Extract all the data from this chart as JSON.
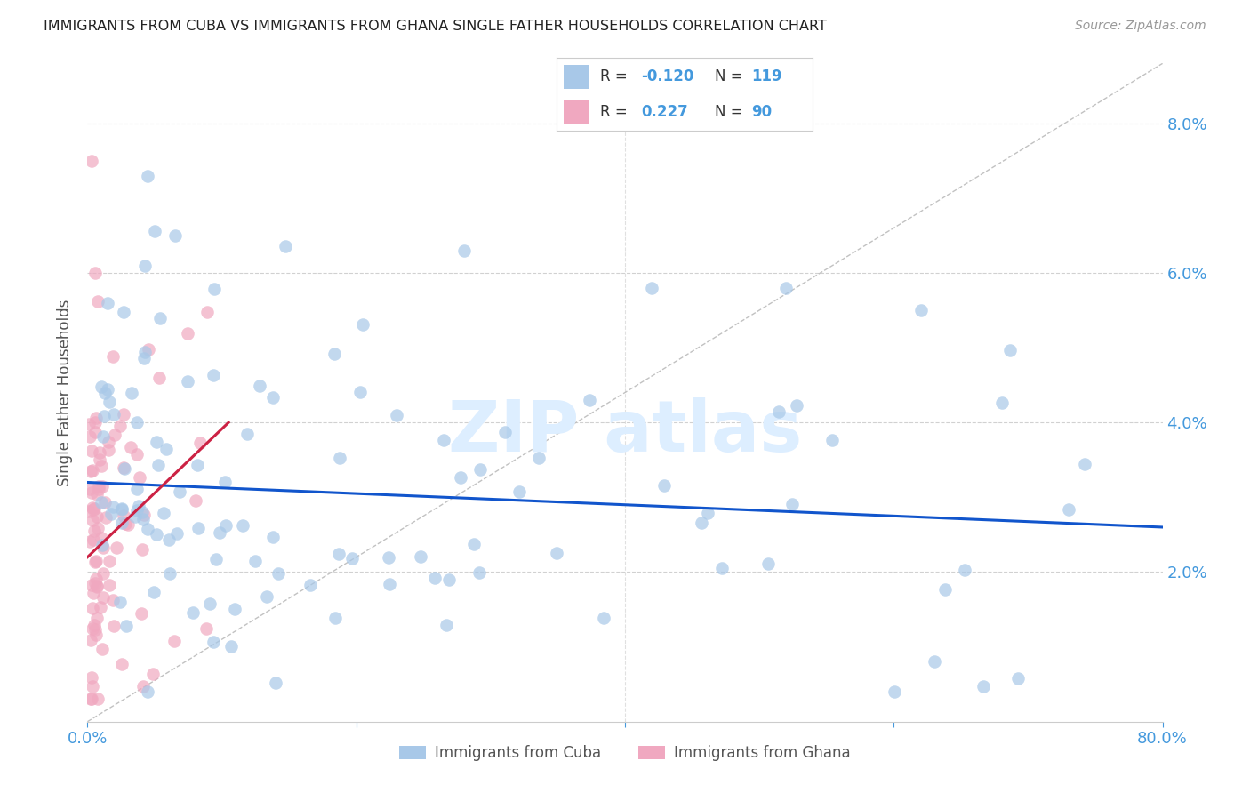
{
  "title": "IMMIGRANTS FROM CUBA VS IMMIGRANTS FROM GHANA SINGLE FATHER HOUSEHOLDS CORRELATION CHART",
  "source": "Source: ZipAtlas.com",
  "ylabel": "Single Father Households",
  "xlim": [
    0.0,
    0.8
  ],
  "ylim": [
    0.0,
    0.088
  ],
  "ytick_vals": [
    0.0,
    0.02,
    0.04,
    0.06,
    0.08
  ],
  "ytick_labels": [
    "",
    "2.0%",
    "4.0%",
    "6.0%",
    "8.0%"
  ],
  "xtick_vals": [
    0.0,
    0.2,
    0.4,
    0.6,
    0.8
  ],
  "xtick_labels": [
    "0.0%",
    "",
    "",
    "",
    "80.0%"
  ],
  "legend_cuba": "Immigrants from Cuba",
  "legend_ghana": "Immigrants from Ghana",
  "cuba_R": "-0.120",
  "cuba_N": "119",
  "ghana_R": "0.227",
  "ghana_N": "90",
  "cuba_color": "#a8c8e8",
  "ghana_color": "#f0a8c0",
  "cuba_line_color": "#1155cc",
  "ghana_line_color": "#cc2244",
  "ref_line_color": "#bbbbbb",
  "background_color": "#ffffff",
  "grid_color": "#cccccc",
  "title_color": "#222222",
  "axis_color": "#4499dd",
  "watermark_color": "#ddeeff",
  "legend_text_color": "#555555",
  "cuba_line_start_x": 0.0,
  "cuba_line_start_y": 0.032,
  "cuba_line_end_x": 0.8,
  "cuba_line_end_y": 0.026,
  "ghana_line_start_x": 0.0,
  "ghana_line_start_y": 0.022,
  "ghana_line_end_x": 0.105,
  "ghana_line_end_y": 0.04,
  "ref_line_start_x": 0.0,
  "ref_line_start_y": 0.0,
  "ref_line_end_x": 0.8,
  "ref_line_end_y": 0.088
}
